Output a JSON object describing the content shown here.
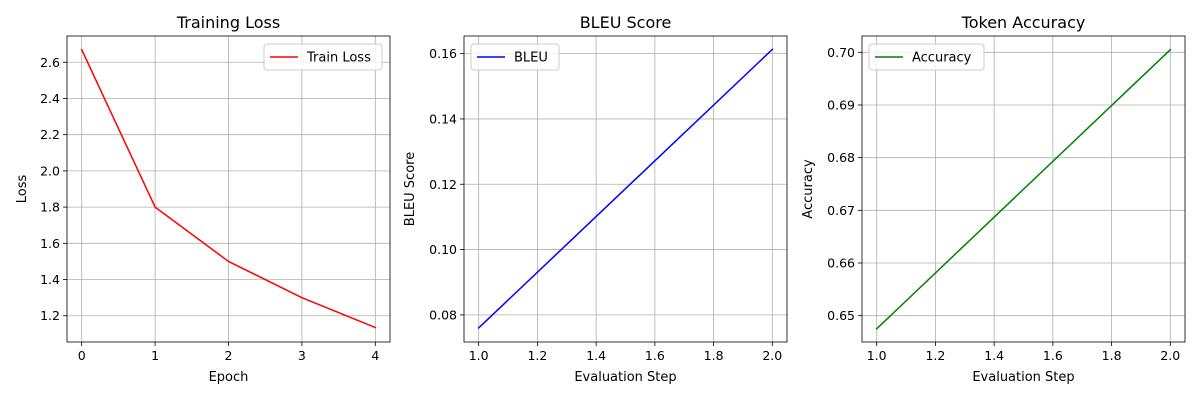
{
  "chart_data": [
    {
      "type": "line",
      "title": "Training Loss",
      "xlabel": "Epoch",
      "ylabel": "Loss",
      "x": [
        0,
        1,
        2,
        3,
        4
      ],
      "xticks": [
        "0",
        "1",
        "2",
        "3",
        "4"
      ],
      "yticks": [
        "1.2",
        "1.4",
        "1.6",
        "1.8",
        "2.0",
        "2.2",
        "2.4",
        "2.6"
      ],
      "xlim": [
        -0.2,
        4.2
      ],
      "ylim": [
        1.055,
        2.745
      ],
      "grid": true,
      "legend_position": "top-right",
      "series": [
        {
          "name": "Train Loss",
          "color": "#ff0000",
          "values": [
            2.67,
            1.8,
            1.5,
            1.3,
            1.135
          ]
        }
      ]
    },
    {
      "type": "line",
      "title": "BLEU Score",
      "xlabel": "Evaluation Step",
      "ylabel": "BLEU Score",
      "x": [
        1.0,
        2.0
      ],
      "xticks": [
        "1.0",
        "1.2",
        "1.4",
        "1.6",
        "1.8",
        "2.0"
      ],
      "yticks": [
        "0.08",
        "0.10",
        "0.12",
        "0.14",
        "0.16"
      ],
      "xlim": [
        0.95,
        2.05
      ],
      "ylim": [
        0.0717,
        0.1654
      ],
      "grid": true,
      "legend_position": "top-left",
      "series": [
        {
          "name": "BLEU",
          "color": "#0000ff",
          "values": [
            0.076,
            0.1613
          ]
        }
      ]
    },
    {
      "type": "line",
      "title": "Token Accuracy",
      "xlabel": "Evaluation Step",
      "ylabel": "Accuracy",
      "x": [
        1.0,
        2.0
      ],
      "xticks": [
        "1.0",
        "1.2",
        "1.4",
        "1.6",
        "1.8",
        "2.0"
      ],
      "yticks": [
        "0.65",
        "0.66",
        "0.67",
        "0.68",
        "0.69",
        "0.70"
      ],
      "xlim": [
        0.95,
        2.05
      ],
      "ylim": [
        0.645,
        0.7031
      ],
      "grid": true,
      "legend_position": "top-left",
      "series": [
        {
          "name": "Accuracy",
          "color": "#008000",
          "values": [
            0.6475,
            0.7005
          ]
        }
      ]
    }
  ]
}
